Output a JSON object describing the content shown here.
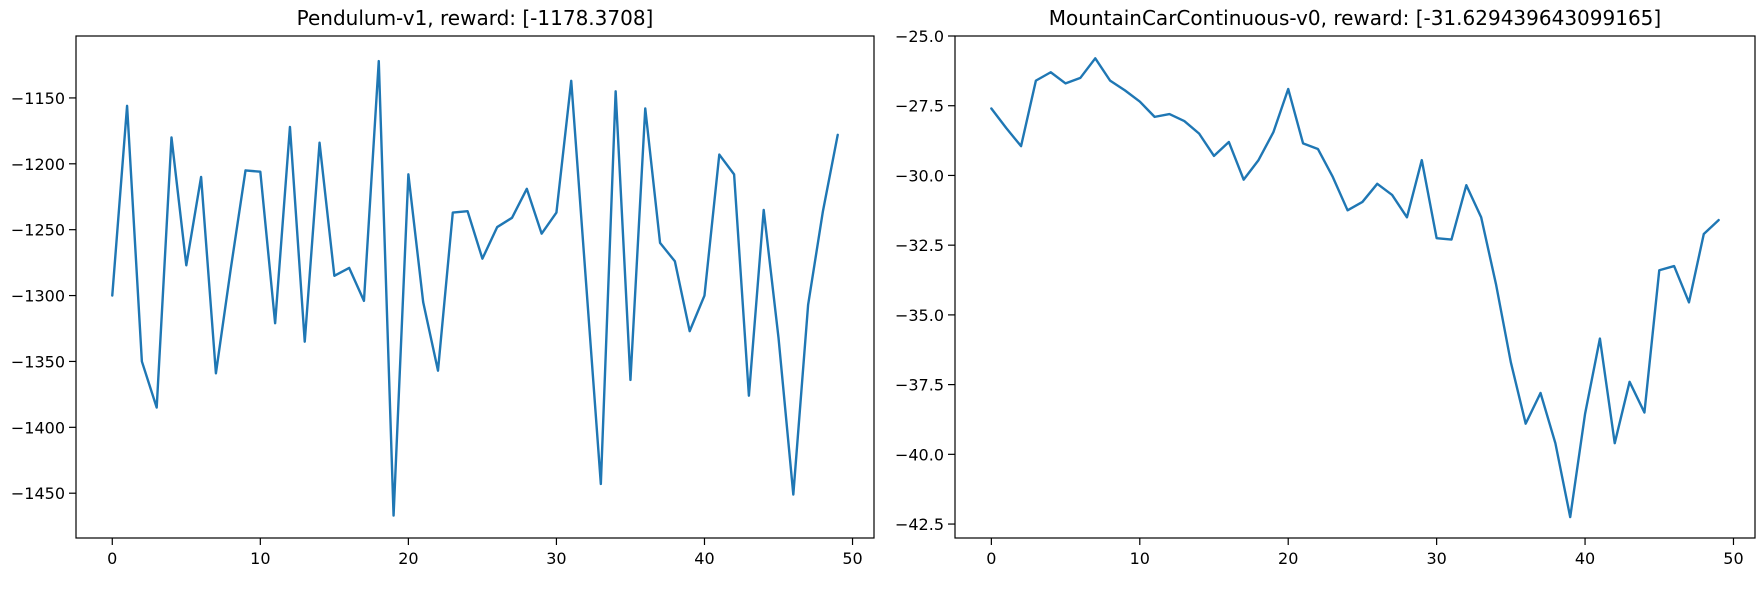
{
  "chart_data": [
    {
      "type": "line",
      "title": "Pendulum-v1, reward: [-1178.3708]",
      "xlabel": "",
      "ylabel": "",
      "xlim": [
        -2.45,
        51.45
      ],
      "ylim": [
        -1484,
        -1103
      ],
      "xticks": [
        0,
        10,
        20,
        30,
        40,
        50
      ],
      "yticks": [
        -1450,
        -1400,
        -1350,
        -1300,
        -1250,
        -1200,
        -1150
      ],
      "grid": false,
      "color": "#1f77b4",
      "x": [
        0,
        1,
        2,
        3,
        4,
        5,
        6,
        7,
        8,
        9,
        10,
        11,
        12,
        13,
        14,
        15,
        16,
        17,
        18,
        19,
        20,
        21,
        22,
        23,
        24,
        25,
        26,
        27,
        28,
        29,
        30,
        31,
        32,
        33,
        34,
        35,
        36,
        37,
        38,
        39,
        40,
        41,
        42,
        43,
        44,
        45,
        46,
        47,
        48,
        49
      ],
      "series": [
        {
          "values": [
            -1300,
            -1156,
            -1350,
            -1385,
            -1180,
            -1277,
            -1210,
            -1359,
            -1280,
            -1205,
            -1206,
            -1321,
            -1172,
            -1335,
            -1184,
            -1285,
            -1279,
            -1304,
            -1122,
            -1467,
            -1208,
            -1305,
            -1357,
            -1237,
            -1236,
            -1272,
            -1248,
            -1241,
            -1219,
            -1253,
            -1237,
            -1137,
            -1290,
            -1443,
            -1145,
            -1364,
            -1158,
            -1260,
            -1274,
            -1327,
            -1300,
            -1193,
            -1208,
            -1376,
            -1235,
            -1332,
            -1451,
            -1307,
            -1236,
            -1178
          ]
        }
      ]
    },
    {
      "type": "line",
      "title": "MountainCarContinuous-v0, reward: [-31.629439643099165]",
      "xlabel": "",
      "ylabel": "",
      "xlim": [
        -2.45,
        51.45
      ],
      "ylim": [
        -43.0,
        -25.0
      ],
      "xticks": [
        0,
        10,
        20,
        30,
        40,
        50
      ],
      "yticks": [
        -42.5,
        -40.0,
        -37.5,
        -35.0,
        -32.5,
        -30.0,
        -27.5,
        -25.0
      ],
      "ytick_labels": [
        "−42.5",
        "−40.0",
        "−37.5",
        "−35.0",
        "−32.5",
        "−30.0",
        "−27.5",
        "−25.0"
      ],
      "grid": false,
      "color": "#1f77b4",
      "x": [
        0,
        1,
        2,
        3,
        4,
        5,
        6,
        7,
        8,
        9,
        10,
        11,
        12,
        13,
        14,
        15,
        16,
        17,
        18,
        19,
        20,
        21,
        22,
        23,
        24,
        25,
        26,
        27,
        28,
        29,
        30,
        31,
        32,
        33,
        34,
        35,
        36,
        37,
        38,
        39,
        40,
        41,
        42,
        43,
        44,
        45,
        46,
        47,
        48,
        49
      ],
      "series": [
        {
          "values": [
            -27.6,
            -28.3,
            -28.95,
            -26.6,
            -26.3,
            -26.7,
            -26.5,
            -25.8,
            -26.6,
            -26.95,
            -27.35,
            -27.9,
            -27.8,
            -28.05,
            -28.5,
            -29.3,
            -28.8,
            -30.15,
            -29.45,
            -28.45,
            -26.9,
            -28.85,
            -29.05,
            -30.05,
            -31.25,
            -30.95,
            -30.3,
            -30.7,
            -31.5,
            -29.45,
            -32.25,
            -32.3,
            -30.35,
            -31.5,
            -33.9,
            -36.7,
            -38.9,
            -37.8,
            -39.6,
            -42.25,
            -38.55,
            -35.85,
            -39.6,
            -37.4,
            -38.5,
            -33.4,
            -33.25,
            -34.55,
            -32.1,
            -31.6
          ]
        }
      ]
    }
  ]
}
